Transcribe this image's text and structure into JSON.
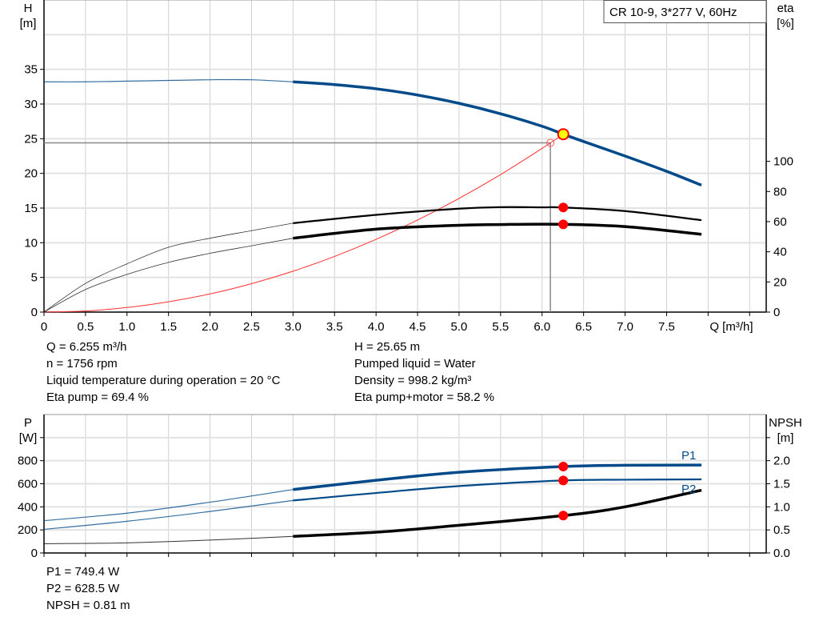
{
  "chart_data": [
    {
      "type": "line",
      "title": "CR 10-9, 3*277 V, 60Hz",
      "xlabel": "Q [m³/h]",
      "ylabel": [
        "H",
        "[m]"
      ],
      "y2label": [
        "eta",
        "[%]"
      ],
      "xlim": [
        0,
        8.7
      ],
      "ylim": [
        0,
        45
      ],
      "y2lim": [
        0,
        207
      ],
      "xticks": [
        "0",
        "0.5",
        "1.0",
        "1.5",
        "2.0",
        "2.5",
        "3.0",
        "3.5",
        "4.0",
        "4.5",
        "5.0",
        "5.5",
        "6.0",
        "6.5",
        "7.0",
        "7.5"
      ],
      "yticks": [
        "0",
        "5",
        "10",
        "15",
        "20",
        "25",
        "30",
        "35"
      ],
      "y2ticks": [
        "0",
        "20",
        "40",
        "60",
        "80",
        "100"
      ],
      "grid": true,
      "operating_range_start": 3.0,
      "series": [
        {
          "id": "H",
          "axis": "left",
          "color": "#004a8a",
          "x": [
            0,
            0.5,
            1,
            1.5,
            2,
            2.5,
            3,
            3.5,
            4,
            4.5,
            5,
            5.5,
            6,
            6.255,
            6.5,
            7,
            7.5,
            7.92
          ],
          "y": [
            33.2,
            33.2,
            33.3,
            33.4,
            33.5,
            33.5,
            33.2,
            32.8,
            32.2,
            31.3,
            30.1,
            28.6,
            26.8,
            25.65,
            24.6,
            22.5,
            20.3,
            18.3
          ]
        },
        {
          "id": "eta_pump",
          "axis": "right",
          "color": "#000000",
          "x": [
            0,
            0.5,
            1,
            1.5,
            2,
            2.5,
            3,
            4,
            5,
            5.5,
            6,
            6.255,
            7,
            7.92
          ],
          "y": [
            0,
            19,
            32,
            43,
            49,
            54,
            59,
            64.5,
            68.6,
            69.6,
            69.5,
            69.4,
            67,
            61
          ]
        },
        {
          "id": "eta_pump_motor",
          "axis": "right",
          "color": "#000000",
          "x": [
            0,
            0.5,
            1,
            1.5,
            2,
            2.5,
            3,
            4,
            5,
            5.7,
            6.255,
            7,
            7.92
          ],
          "y": [
            0,
            15,
            25,
            33,
            39,
            44,
            49,
            55,
            57.6,
            58.2,
            58.2,
            56.7,
            51.6
          ]
        },
        {
          "id": "system_curve",
          "axis": "left",
          "color": "#ff3030",
          "x": [
            0,
            0.5,
            1,
            1.5,
            2,
            2.5,
            3,
            3.5,
            4,
            4.5,
            5,
            5.5,
            6,
            6.255
          ],
          "y": [
            0,
            0.16,
            0.66,
            1.48,
            2.62,
            4.1,
            5.9,
            8.03,
            10.49,
            13.28,
            16.39,
            19.83,
            23.6,
            25.65
          ]
        }
      ],
      "duty_point": {
        "Q": 6.255,
        "H": 25.65,
        "eta_pump": 69.4,
        "eta_total": 58.2
      },
      "required_point": {
        "Q": 6.1,
        "H": 24.4
      }
    },
    {
      "type": "line",
      "ylabel": [
        "P",
        "[W]"
      ],
      "y2label": [
        "NPSH",
        "[m]"
      ],
      "xlim": [
        0,
        8.7
      ],
      "ylim": [
        0,
        1200
      ],
      "y2lim": [
        0,
        3.0
      ],
      "yticks": [
        "0",
        "200",
        "400",
        "600",
        "800"
      ],
      "y2ticks": [
        "0.0",
        "0.5",
        "1.0",
        "1.5",
        "2.0"
      ],
      "grid": true,
      "series": [
        {
          "id": "P1",
          "name": "P1",
          "axis": "left",
          "color": "#004a8a",
          "x": [
            0,
            1,
            2,
            3,
            4,
            5,
            6.255,
            7,
            7.92
          ],
          "y": [
            280,
            345,
            440,
            550,
            630,
            700,
            749.4,
            760,
            762
          ]
        },
        {
          "id": "P2",
          "name": "P2",
          "axis": "left",
          "color": "#004a8a",
          "x": [
            0,
            1,
            2,
            3,
            4,
            5,
            6.255,
            7,
            7.92
          ],
          "y": [
            205,
            275,
            360,
            455,
            520,
            580,
            628.5,
            635,
            638
          ]
        },
        {
          "id": "NPSH",
          "axis": "right",
          "color": "#000000",
          "x": [
            0,
            1,
            2,
            3,
            4,
            5,
            6.255,
            7,
            7.92
          ],
          "y": [
            0.2,
            0.22,
            0.28,
            0.36,
            0.45,
            0.6,
            0.81,
            1.0,
            1.36
          ]
        }
      ],
      "duty_point": {
        "Q": 6.255,
        "P1": 749.4,
        "P2": 628.5,
        "NPSH": 0.81
      }
    }
  ],
  "info": {
    "left": [
      "Q = 6.255 m³/h",
      "n = 1756 rpm",
      "Liquid temperature during operation = 20 °C",
      "Eta pump = 69.4 %"
    ],
    "right": [
      "H = 25.65 m",
      "Pumped liquid = Water",
      "Density = 998.2 kg/m³",
      "Eta pump+motor = 58.2 %"
    ],
    "bottom": [
      "P1 = 749.4 W",
      "P2 = 628.5 W",
      "NPSH = 0.81 m"
    ]
  }
}
